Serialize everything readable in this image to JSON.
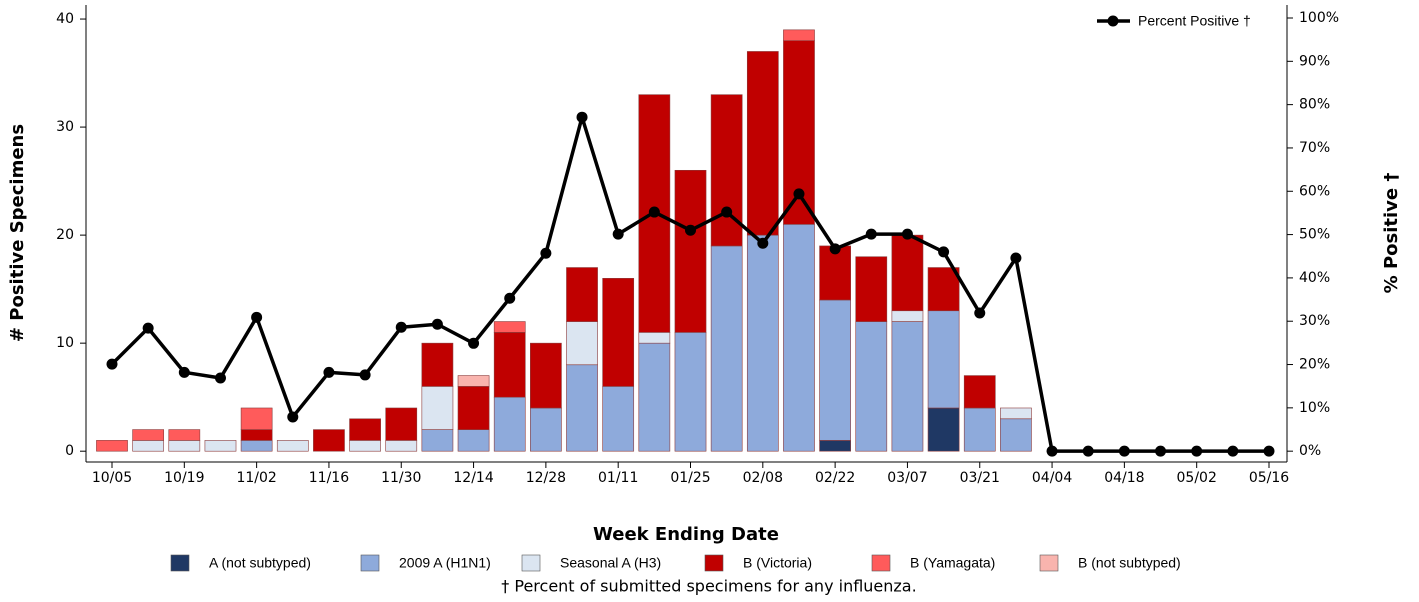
{
  "chart_data": {
    "type": "bar",
    "x_label": "Week Ending Date",
    "y_label": "# Positive Specimens",
    "y2_label": "% Positive †",
    "footnote": "†  Percent of submitted specimens for any influenza.",
    "categories": [
      "10/05",
      null,
      "10/19",
      null,
      "11/02",
      null,
      "11/16",
      null,
      "11/30",
      null,
      "12/14",
      null,
      "12/28",
      null,
      "01/11",
      null,
      "01/25",
      null,
      "02/08",
      null,
      "02/22",
      null,
      "03/07",
      null,
      "03/21",
      null,
      "04/04",
      null,
      "04/18",
      null,
      "05/02",
      null,
      "05/16"
    ],
    "stacked": true,
    "series": [
      {
        "name": "A (not subtyped)",
        "color": "#1f3864",
        "values": [
          0,
          0,
          0,
          0,
          0,
          0,
          0,
          0,
          0,
          0,
          0,
          0,
          0,
          0,
          0,
          0,
          0,
          0,
          0,
          0,
          1,
          0,
          0,
          4,
          0,
          0,
          0,
          0,
          0,
          0,
          0,
          0,
          0
        ]
      },
      {
        "name": "2009 A (H1N1)",
        "color": "#8eaadb",
        "values": [
          0,
          0,
          0,
          0,
          1,
          0,
          0,
          0,
          0,
          2,
          2,
          5,
          4,
          8,
          6,
          10,
          11,
          19,
          20,
          21,
          13,
          12,
          12,
          9,
          4,
          3,
          0,
          0,
          0,
          0,
          0,
          0,
          0
        ]
      },
      {
        "name": "Seasonal A (H3)",
        "color": "#dbe5f1",
        "values": [
          0,
          1,
          1,
          1,
          0,
          1,
          0,
          1,
          1,
          4,
          0,
          0,
          0,
          4,
          0,
          1,
          0,
          0,
          0,
          0,
          0,
          0,
          1,
          0,
          0,
          1,
          0,
          0,
          0,
          0,
          0,
          0,
          0
        ]
      },
      {
        "name": "B (Victoria)",
        "color": "#c00000",
        "values": [
          0,
          0,
          0,
          0,
          1,
          0,
          2,
          2,
          3,
          4,
          4,
          6,
          6,
          5,
          10,
          22,
          15,
          14,
          17,
          17,
          5,
          6,
          7,
          4,
          3,
          0,
          0,
          0,
          0,
          0,
          0,
          0,
          0
        ]
      },
      {
        "name": "B (Yamagata)",
        "color": "#ff5b5b",
        "values": [
          1,
          1,
          1,
          0,
          2,
          0,
          0,
          0,
          0,
          0,
          0,
          1,
          0,
          0,
          0,
          0,
          0,
          0,
          0,
          1,
          0,
          0,
          0,
          0,
          0,
          0,
          0,
          0,
          0,
          0,
          0,
          0,
          0
        ]
      },
      {
        "name": "B (not subtyped)",
        "color": "#f9b4ae",
        "values": [
          0,
          0,
          0,
          0,
          0,
          0,
          0,
          0,
          0,
          0,
          1,
          0,
          0,
          0,
          0,
          0,
          0,
          0,
          0,
          0,
          0,
          0,
          0,
          0,
          0,
          0,
          0,
          0,
          0,
          0,
          0,
          0,
          0
        ]
      },
      {
        "name": "Percent Positive †",
        "type": "line",
        "axis": "y2",
        "color": "#000000",
        "values": [
          20.1,
          28.4,
          18.2,
          16.9,
          30.9,
          7.9,
          18.2,
          17.6,
          28.6,
          29.3,
          24.9,
          35.3,
          45.7,
          77.1,
          50.1,
          55.2,
          51.0,
          55.2,
          48.0,
          59.4,
          46.7,
          50.1,
          50.1,
          46.0,
          31.9,
          44.6,
          0,
          0,
          0,
          0,
          0,
          0,
          0
        ]
      }
    ],
    "ylim": [
      -1,
      41.3
    ],
    "yticks": [
      0,
      10,
      20,
      30,
      40
    ],
    "y2lim": [
      -2.5,
      103
    ],
    "y2ticks": [
      {
        "value": 0,
        "label": "0%"
      },
      {
        "value": 10,
        "label": "10%"
      },
      {
        "value": 20,
        "label": "20%"
      },
      {
        "value": 30,
        "label": "30%"
      },
      {
        "value": 40,
        "label": "40%"
      },
      {
        "value": 50,
        "label": "50%"
      },
      {
        "value": 60,
        "label": "60%"
      },
      {
        "value": 70,
        "label": "70%"
      },
      {
        "value": 80,
        "label": "80%"
      },
      {
        "value": 90,
        "label": "90%"
      },
      {
        "value": 100,
        "label": "100%"
      }
    ],
    "line_legend_position": "top-right",
    "legend_position": "bottom"
  }
}
